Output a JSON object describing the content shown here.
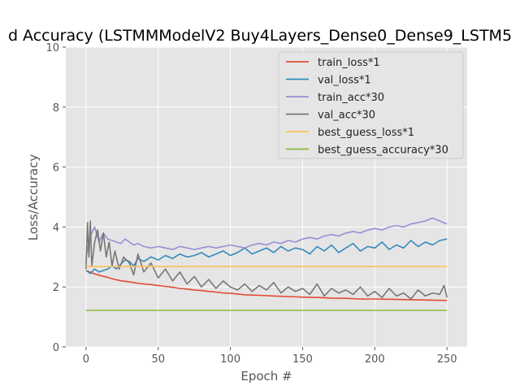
{
  "chart_data": {
    "type": "line",
    "title": "d Accuracy (LSTMMModelV2 Buy4Layers_Dense0_Dense9_LSTM5",
    "xlabel": "Epoch #",
    "ylabel": "Loss/Accuracy",
    "xlim": [
      -14,
      264
    ],
    "ylim": [
      0,
      10
    ],
    "xticks": [
      0,
      50,
      100,
      150,
      200,
      250
    ],
    "yticks": [
      0,
      2,
      4,
      6,
      8,
      10
    ],
    "grid": true,
    "legend_position": "top-right",
    "series": [
      {
        "name": "train_loss*1",
        "color": "#E24A33",
        "x": [
          0,
          5,
          10,
          15,
          20,
          25,
          30,
          35,
          40,
          45,
          50,
          55,
          60,
          65,
          70,
          75,
          80,
          85,
          90,
          95,
          100,
          110,
          120,
          130,
          140,
          150,
          160,
          170,
          180,
          190,
          200,
          210,
          220,
          230,
          240,
          250
        ],
        "y": [
          2.55,
          2.45,
          2.38,
          2.32,
          2.25,
          2.2,
          2.17,
          2.13,
          2.1,
          2.08,
          2.05,
          2.02,
          1.99,
          1.95,
          1.93,
          1.9,
          1.88,
          1.85,
          1.83,
          1.8,
          1.79,
          1.74,
          1.72,
          1.7,
          1.68,
          1.66,
          1.65,
          1.63,
          1.62,
          1.6,
          1.6,
          1.59,
          1.58,
          1.57,
          1.56,
          1.55
        ]
      },
      {
        "name": "val_loss*1",
        "color": "#348ABD",
        "x": [
          0,
          3,
          6,
          9,
          12,
          15,
          18,
          21,
          24,
          27,
          30,
          33,
          36,
          40,
          45,
          50,
          55,
          60,
          65,
          70,
          75,
          80,
          85,
          90,
          95,
          100,
          105,
          110,
          115,
          120,
          125,
          130,
          135,
          140,
          145,
          150,
          155,
          160,
          165,
          170,
          175,
          180,
          185,
          190,
          195,
          200,
          205,
          210,
          215,
          220,
          225,
          230,
          235,
          240,
          245,
          250
        ],
        "y": [
          2.55,
          2.45,
          2.6,
          2.5,
          2.55,
          2.6,
          2.7,
          2.6,
          2.75,
          2.9,
          2.85,
          2.7,
          2.95,
          2.85,
          3.0,
          2.9,
          3.05,
          2.95,
          3.1,
          3.0,
          3.05,
          3.15,
          3.0,
          3.1,
          3.2,
          3.05,
          3.15,
          3.3,
          3.1,
          3.2,
          3.3,
          3.15,
          3.35,
          3.2,
          3.3,
          3.25,
          3.1,
          3.35,
          3.2,
          3.4,
          3.15,
          3.3,
          3.45,
          3.2,
          3.35,
          3.3,
          3.5,
          3.25,
          3.4,
          3.3,
          3.55,
          3.35,
          3.5,
          3.4,
          3.55,
          3.6
        ]
      },
      {
        "name": "train_acc*30",
        "color": "#988ED5",
        "x": [
          0,
          3,
          6,
          9,
          12,
          15,
          18,
          21,
          24,
          27,
          30,
          33,
          36,
          40,
          45,
          50,
          55,
          60,
          65,
          70,
          75,
          80,
          85,
          90,
          95,
          100,
          105,
          110,
          115,
          120,
          125,
          130,
          135,
          140,
          145,
          150,
          155,
          160,
          165,
          170,
          175,
          180,
          185,
          190,
          195,
          200,
          205,
          210,
          215,
          220,
          225,
          230,
          235,
          240,
          245,
          250
        ],
        "y": [
          3.0,
          3.7,
          4.0,
          3.5,
          3.8,
          3.6,
          3.55,
          3.5,
          3.45,
          3.6,
          3.5,
          3.4,
          3.45,
          3.35,
          3.3,
          3.35,
          3.3,
          3.25,
          3.35,
          3.3,
          3.25,
          3.3,
          3.35,
          3.3,
          3.35,
          3.4,
          3.35,
          3.3,
          3.4,
          3.45,
          3.4,
          3.5,
          3.45,
          3.55,
          3.5,
          3.6,
          3.65,
          3.6,
          3.7,
          3.75,
          3.7,
          3.8,
          3.85,
          3.8,
          3.9,
          3.95,
          3.9,
          4.0,
          4.05,
          4.0,
          4.1,
          4.15,
          4.2,
          4.3,
          4.2,
          4.1
        ]
      },
      {
        "name": "val_acc*30",
        "color": "#777777",
        "x": [
          0,
          1,
          2,
          3,
          4,
          6,
          8,
          10,
          12,
          14,
          16,
          18,
          20,
          23,
          26,
          30,
          33,
          36,
          40,
          45,
          50,
          55,
          60,
          65,
          70,
          75,
          80,
          85,
          90,
          95,
          100,
          105,
          110,
          115,
          120,
          125,
          130,
          135,
          140,
          145,
          150,
          155,
          160,
          165,
          170,
          175,
          180,
          185,
          190,
          195,
          200,
          205,
          210,
          215,
          220,
          225,
          230,
          235,
          240,
          245,
          248,
          250
        ],
        "y": [
          2.6,
          4.15,
          3.0,
          4.2,
          2.7,
          3.5,
          3.9,
          3.2,
          3.8,
          3.0,
          3.5,
          2.7,
          3.2,
          2.6,
          3.0,
          2.8,
          2.4,
          3.1,
          2.5,
          2.8,
          2.3,
          2.6,
          2.2,
          2.5,
          2.1,
          2.35,
          2.0,
          2.25,
          1.95,
          2.2,
          2.0,
          1.9,
          2.1,
          1.85,
          2.05,
          1.9,
          2.15,
          1.8,
          2.0,
          1.85,
          1.95,
          1.75,
          2.1,
          1.7,
          1.95,
          1.8,
          1.9,
          1.75,
          2.0,
          1.7,
          1.85,
          1.65,
          1.95,
          1.7,
          1.8,
          1.6,
          1.9,
          1.7,
          1.8,
          1.75,
          2.05,
          1.65
        ]
      },
      {
        "name": "best_guess_loss*1",
        "color": "#FBC15E",
        "x": [
          0,
          250
        ],
        "y": [
          2.68,
          2.68
        ]
      },
      {
        "name": "best_guess_accuracy*30",
        "color": "#8EBA42",
        "x": [
          0,
          250
        ],
        "y": [
          1.22,
          1.22
        ]
      }
    ]
  }
}
